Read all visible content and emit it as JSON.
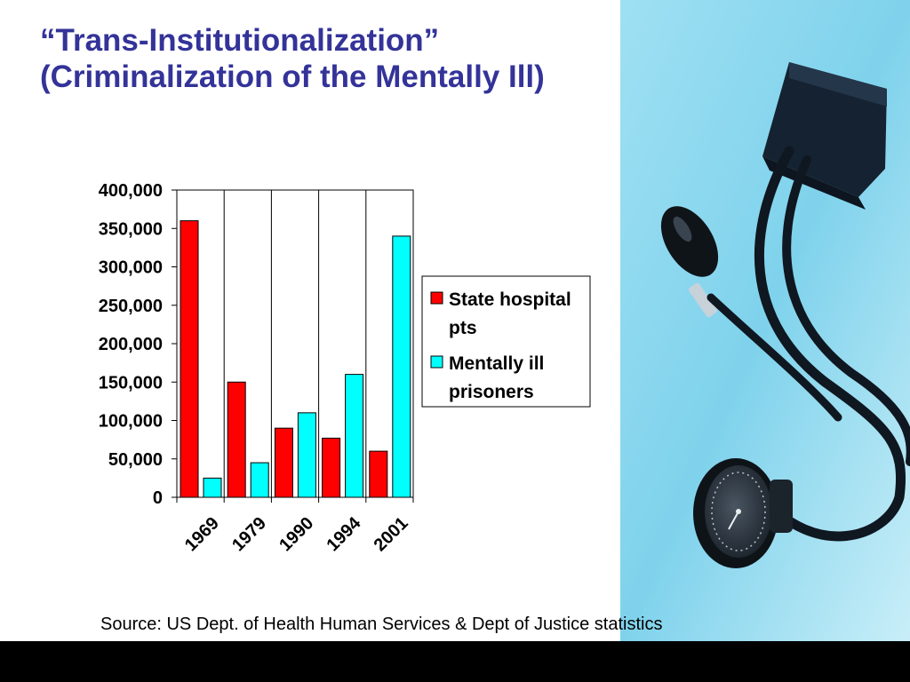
{
  "slide": {
    "title": "“Trans-Institutionalization” (Criminalization of the Mentally Ill)",
    "source": "Source: US Dept. of Health Human Services & Dept of Justice statistics"
  },
  "colors": {
    "title": "#333399",
    "series_state_hospital": "#ff0000",
    "series_prisoners": "#00ffff",
    "photo_background": "#8ad8ee",
    "footer": "#000000"
  },
  "photo": {
    "icon": "blood-pressure-cuff-icon"
  },
  "chart_data": {
    "type": "bar",
    "title": "",
    "xlabel": "",
    "ylabel": "",
    "categories": [
      "1969",
      "1979",
      "1990",
      "1994",
      "2001"
    ],
    "series": [
      {
        "name": "State hospital pts",
        "values": [
          360000,
          150000,
          90000,
          77000,
          60000
        ]
      },
      {
        "name": "Mentally ill prisoners",
        "values": [
          25000,
          45000,
          110000,
          160000,
          340000
        ]
      }
    ],
    "ylim": [
      0,
      400000
    ],
    "yticks": [
      "0",
      "50,000",
      "100,000",
      "150,000",
      "200,000",
      "250,000",
      "300,000",
      "350,000",
      "400,000"
    ],
    "grid": "vertical",
    "legend_position": "right",
    "legend": [
      "State hospital pts",
      "Mentally ill prisoners"
    ]
  }
}
